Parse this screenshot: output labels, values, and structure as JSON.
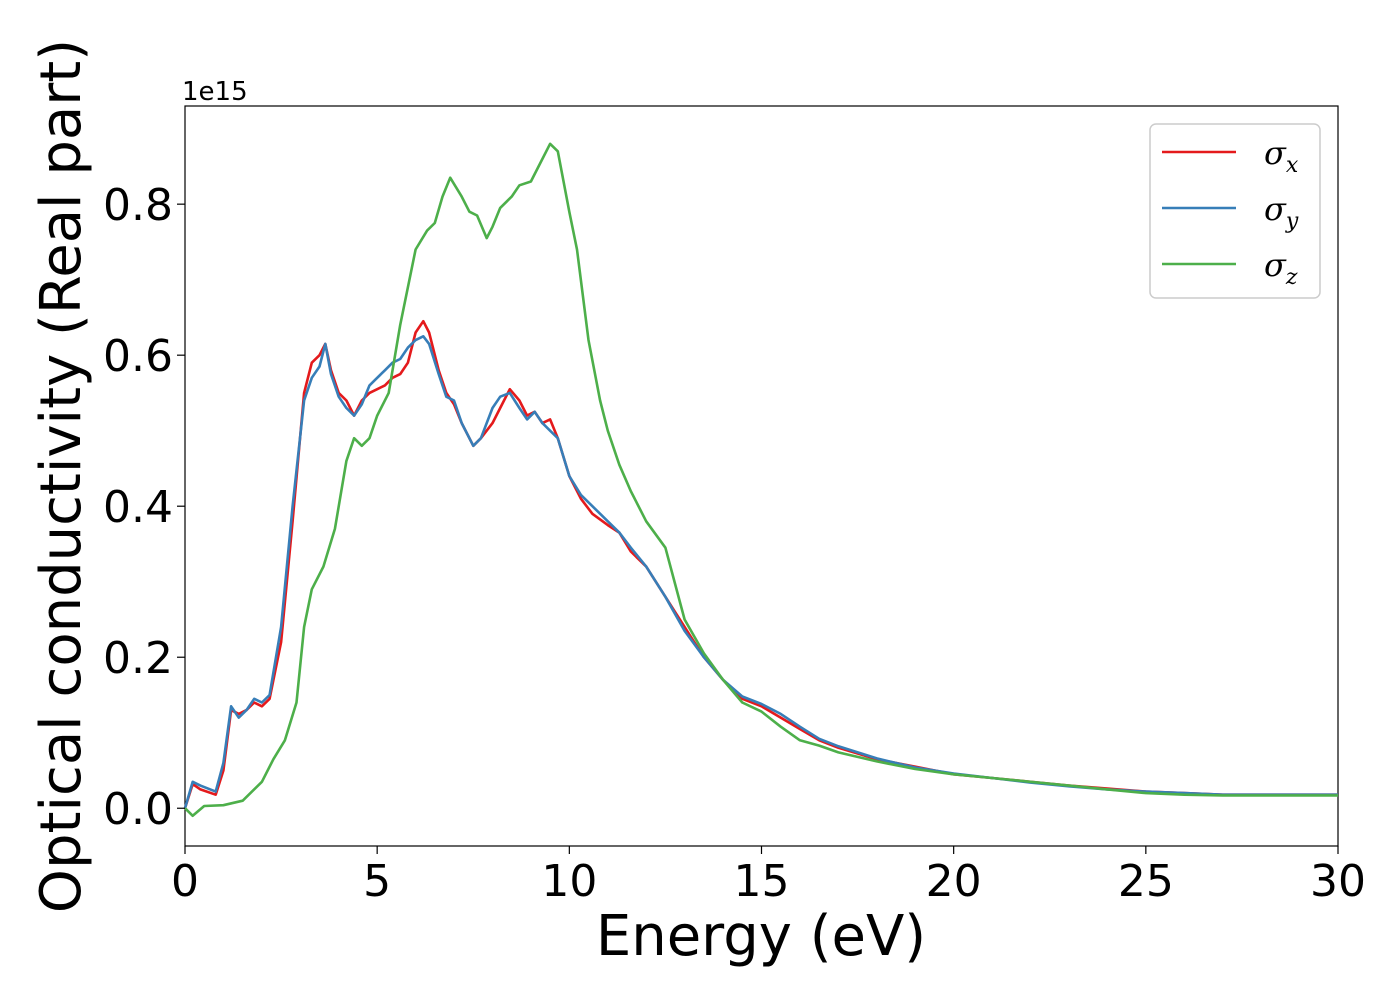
{
  "chart_data": {
    "type": "line",
    "title": "",
    "xlabel": "Energy (eV)",
    "ylabel": "Optical conductivity (Real part)",
    "y_offset_text": "1e15",
    "xlim": [
      0,
      30
    ],
    "ylim": [
      -0.05,
      0.93
    ],
    "x_ticks": [
      0,
      5,
      10,
      15,
      20,
      25,
      30
    ],
    "x_tick_labels": [
      "0",
      "5",
      "10",
      "15",
      "20",
      "25",
      "30"
    ],
    "y_ticks": [
      0.0,
      0.2,
      0.4,
      0.6,
      0.8
    ],
    "y_tick_labels": [
      "0.0",
      "0.2",
      "0.4",
      "0.6",
      "0.8"
    ],
    "grid": false,
    "legend_position": "top-right",
    "series": [
      {
        "name": "σx",
        "label_base": "σ",
        "label_sub": "x",
        "color": "#e41a1c",
        "points": [
          [
            0,
            0
          ],
          [
            0.2,
            0.032
          ],
          [
            0.4,
            0.025
          ],
          [
            0.8,
            0.018
          ],
          [
            1.0,
            0.05
          ],
          [
            1.2,
            0.13
          ],
          [
            1.4,
            0.125
          ],
          [
            1.6,
            0.13
          ],
          [
            1.8,
            0.14
          ],
          [
            2.0,
            0.135
          ],
          [
            2.2,
            0.145
          ],
          [
            2.5,
            0.22
          ],
          [
            2.8,
            0.38
          ],
          [
            3.1,
            0.55
          ],
          [
            3.3,
            0.59
          ],
          [
            3.5,
            0.6
          ],
          [
            3.65,
            0.615
          ],
          [
            3.8,
            0.58
          ],
          [
            4.0,
            0.55
          ],
          [
            4.2,
            0.54
          ],
          [
            4.4,
            0.52
          ],
          [
            4.6,
            0.54
          ],
          [
            4.8,
            0.55
          ],
          [
            5.0,
            0.555
          ],
          [
            5.2,
            0.56
          ],
          [
            5.4,
            0.57
          ],
          [
            5.6,
            0.575
          ],
          [
            5.8,
            0.59
          ],
          [
            6.0,
            0.63
          ],
          [
            6.2,
            0.645
          ],
          [
            6.35,
            0.63
          ],
          [
            6.6,
            0.58
          ],
          [
            6.8,
            0.55
          ],
          [
            7.0,
            0.535
          ],
          [
            7.2,
            0.51
          ],
          [
            7.5,
            0.48
          ],
          [
            7.7,
            0.49
          ],
          [
            8.0,
            0.51
          ],
          [
            8.2,
            0.53
          ],
          [
            8.45,
            0.555
          ],
          [
            8.7,
            0.54
          ],
          [
            8.9,
            0.52
          ],
          [
            9.1,
            0.525
          ],
          [
            9.3,
            0.51
          ],
          [
            9.5,
            0.515
          ],
          [
            9.7,
            0.49
          ],
          [
            10.0,
            0.44
          ],
          [
            10.3,
            0.41
          ],
          [
            10.6,
            0.39
          ],
          [
            11.0,
            0.375
          ],
          [
            11.3,
            0.365
          ],
          [
            11.6,
            0.34
          ],
          [
            12.0,
            0.32
          ],
          [
            12.5,
            0.28
          ],
          [
            13.0,
            0.24
          ],
          [
            13.5,
            0.2
          ],
          [
            14.0,
            0.17
          ],
          [
            14.5,
            0.145
          ],
          [
            15.0,
            0.135
          ],
          [
            15.5,
            0.12
          ],
          [
            16.0,
            0.105
          ],
          [
            16.5,
            0.09
          ],
          [
            17.0,
            0.08
          ],
          [
            18.0,
            0.065
          ],
          [
            19.0,
            0.055
          ],
          [
            20.0,
            0.045
          ],
          [
            21.0,
            0.04
          ],
          [
            22.0,
            0.035
          ],
          [
            23.0,
            0.03
          ],
          [
            24.0,
            0.026
          ],
          [
            25.0,
            0.022
          ],
          [
            26.0,
            0.02
          ],
          [
            27.0,
            0.018
          ],
          [
            28.0,
            0.018
          ],
          [
            29.0,
            0.018
          ],
          [
            30.0,
            0.018
          ]
        ]
      },
      {
        "name": "σy",
        "label_base": "σ",
        "label_sub": "y",
        "color": "#377eb8",
        "points": [
          [
            0,
            0
          ],
          [
            0.2,
            0.035
          ],
          [
            0.4,
            0.03
          ],
          [
            0.8,
            0.022
          ],
          [
            1.0,
            0.06
          ],
          [
            1.2,
            0.135
          ],
          [
            1.4,
            0.12
          ],
          [
            1.6,
            0.13
          ],
          [
            1.8,
            0.145
          ],
          [
            2.0,
            0.14
          ],
          [
            2.2,
            0.15
          ],
          [
            2.5,
            0.24
          ],
          [
            2.8,
            0.4
          ],
          [
            3.1,
            0.54
          ],
          [
            3.3,
            0.57
          ],
          [
            3.5,
            0.585
          ],
          [
            3.65,
            0.615
          ],
          [
            3.8,
            0.575
          ],
          [
            4.0,
            0.545
          ],
          [
            4.2,
            0.53
          ],
          [
            4.4,
            0.52
          ],
          [
            4.6,
            0.535
          ],
          [
            4.8,
            0.56
          ],
          [
            5.0,
            0.57
          ],
          [
            5.2,
            0.58
          ],
          [
            5.4,
            0.59
          ],
          [
            5.6,
            0.595
          ],
          [
            5.8,
            0.61
          ],
          [
            6.0,
            0.62
          ],
          [
            6.2,
            0.625
          ],
          [
            6.35,
            0.615
          ],
          [
            6.6,
            0.575
          ],
          [
            6.8,
            0.545
          ],
          [
            7.0,
            0.54
          ],
          [
            7.2,
            0.51
          ],
          [
            7.5,
            0.48
          ],
          [
            7.7,
            0.49
          ],
          [
            8.0,
            0.53
          ],
          [
            8.2,
            0.545
          ],
          [
            8.45,
            0.55
          ],
          [
            8.7,
            0.53
          ],
          [
            8.9,
            0.515
          ],
          [
            9.1,
            0.525
          ],
          [
            9.3,
            0.51
          ],
          [
            9.5,
            0.5
          ],
          [
            9.7,
            0.49
          ],
          [
            10.0,
            0.44
          ],
          [
            10.3,
            0.415
          ],
          [
            10.6,
            0.4
          ],
          [
            11.0,
            0.38
          ],
          [
            11.3,
            0.365
          ],
          [
            11.6,
            0.345
          ],
          [
            12.0,
            0.32
          ],
          [
            12.5,
            0.28
          ],
          [
            13.0,
            0.235
          ],
          [
            13.5,
            0.2
          ],
          [
            14.0,
            0.17
          ],
          [
            14.5,
            0.148
          ],
          [
            15.0,
            0.138
          ],
          [
            15.5,
            0.125
          ],
          [
            16.0,
            0.108
          ],
          [
            16.5,
            0.092
          ],
          [
            17.0,
            0.082
          ],
          [
            18.0,
            0.066
          ],
          [
            19.0,
            0.054
          ],
          [
            20.0,
            0.046
          ],
          [
            21.0,
            0.04
          ],
          [
            22.0,
            0.034
          ],
          [
            23.0,
            0.029
          ],
          [
            24.0,
            0.025
          ],
          [
            25.0,
            0.022
          ],
          [
            26.0,
            0.02
          ],
          [
            27.0,
            0.018
          ],
          [
            28.0,
            0.018
          ],
          [
            29.0,
            0.018
          ],
          [
            30.0,
            0.018
          ]
        ]
      },
      {
        "name": "σz",
        "label_base": "σ",
        "label_sub": "z",
        "color": "#4daf4a",
        "points": [
          [
            0,
            0
          ],
          [
            0.2,
            -0.01
          ],
          [
            0.5,
            0.003
          ],
          [
            1.0,
            0.004
          ],
          [
            1.5,
            0.01
          ],
          [
            2.0,
            0.035
          ],
          [
            2.3,
            0.065
          ],
          [
            2.6,
            0.09
          ],
          [
            2.9,
            0.14
          ],
          [
            3.1,
            0.24
          ],
          [
            3.3,
            0.29
          ],
          [
            3.6,
            0.32
          ],
          [
            3.9,
            0.37
          ],
          [
            4.2,
            0.46
          ],
          [
            4.4,
            0.49
          ],
          [
            4.6,
            0.48
          ],
          [
            4.8,
            0.49
          ],
          [
            5.0,
            0.52
          ],
          [
            5.3,
            0.55
          ],
          [
            5.6,
            0.64
          ],
          [
            6.0,
            0.74
          ],
          [
            6.3,
            0.765
          ],
          [
            6.5,
            0.775
          ],
          [
            6.7,
            0.81
          ],
          [
            6.9,
            0.835
          ],
          [
            7.2,
            0.81
          ],
          [
            7.4,
            0.79
          ],
          [
            7.6,
            0.785
          ],
          [
            7.85,
            0.755
          ],
          [
            8.0,
            0.77
          ],
          [
            8.2,
            0.795
          ],
          [
            8.5,
            0.81
          ],
          [
            8.7,
            0.825
          ],
          [
            9.0,
            0.83
          ],
          [
            9.2,
            0.85
          ],
          [
            9.5,
            0.88
          ],
          [
            9.7,
            0.87
          ],
          [
            10.0,
            0.79
          ],
          [
            10.2,
            0.74
          ],
          [
            10.5,
            0.62
          ],
          [
            10.8,
            0.54
          ],
          [
            11.0,
            0.5
          ],
          [
            11.3,
            0.455
          ],
          [
            11.6,
            0.42
          ],
          [
            12.0,
            0.38
          ],
          [
            12.5,
            0.345
          ],
          [
            13.0,
            0.25
          ],
          [
            13.5,
            0.205
          ],
          [
            14.0,
            0.17
          ],
          [
            14.5,
            0.14
          ],
          [
            15.0,
            0.128
          ],
          [
            15.5,
            0.108
          ],
          [
            16.0,
            0.09
          ],
          [
            16.5,
            0.083
          ],
          [
            17.0,
            0.074
          ],
          [
            18.0,
            0.062
          ],
          [
            19.0,
            0.052
          ],
          [
            20.0,
            0.045
          ],
          [
            21.0,
            0.04
          ],
          [
            22.0,
            0.035
          ],
          [
            23.0,
            0.03
          ],
          [
            24.0,
            0.025
          ],
          [
            25.0,
            0.02
          ],
          [
            26.0,
            0.018
          ],
          [
            27.0,
            0.017
          ],
          [
            28.0,
            0.017
          ],
          [
            29.0,
            0.017
          ],
          [
            30.0,
            0.017
          ]
        ]
      }
    ]
  }
}
